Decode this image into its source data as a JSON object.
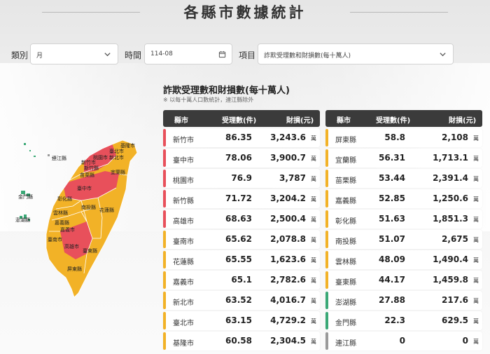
{
  "header": {
    "title": "各縣市數據統計"
  },
  "filters": {
    "category": {
      "label": "類別",
      "value": "月"
    },
    "time": {
      "label": "時間",
      "value": "114-08"
    },
    "item": {
      "label": "項目",
      "value": "詐欺受理數和財損數(每十萬人)"
    }
  },
  "section": {
    "title": "詐欺受理數和財損數(每十萬人)",
    "note": "※ 以每十萬人口數統計，連江縣除外"
  },
  "table_headers": {
    "city": "縣市",
    "cases": "受理數(件)",
    "loss": "財損(元)"
  },
  "unit": "萬",
  "colors": {
    "red": "#e8505b",
    "orange": "#f2b227",
    "green": "#3aa876",
    "gray": "#9a9a9a"
  },
  "left_rows": [
    {
      "city": "新竹市",
      "cases": "86.35",
      "loss": "3,243.6",
      "level": "red"
    },
    {
      "city": "臺中市",
      "cases": "78.06",
      "loss": "3,900.7",
      "level": "red"
    },
    {
      "city": "桃園市",
      "cases": "76.9",
      "loss": "3,787",
      "level": "red"
    },
    {
      "city": "新竹縣",
      "cases": "71.72",
      "loss": "3,204.2",
      "level": "red"
    },
    {
      "city": "高雄市",
      "cases": "68.63",
      "loss": "2,500.4",
      "level": "red"
    },
    {
      "city": "臺南市",
      "cases": "65.62",
      "loss": "2,078.8",
      "level": "orange"
    },
    {
      "city": "花蓮縣",
      "cases": "65.55",
      "loss": "1,623.6",
      "level": "orange"
    },
    {
      "city": "嘉義市",
      "cases": "65.1",
      "loss": "2,782.6",
      "level": "orange"
    },
    {
      "city": "新北市",
      "cases": "63.52",
      "loss": "4,016.7",
      "level": "orange"
    },
    {
      "city": "臺北市",
      "cases": "63.15",
      "loss": "4,729.2",
      "level": "orange"
    },
    {
      "city": "基隆市",
      "cases": "60.58",
      "loss": "2,304.5",
      "level": "orange"
    }
  ],
  "right_rows": [
    {
      "city": "屏東縣",
      "cases": "58.8",
      "loss": "2,108",
      "level": "orange"
    },
    {
      "city": "宜蘭縣",
      "cases": "56.31",
      "loss": "1,713.1",
      "level": "orange"
    },
    {
      "city": "苗栗縣",
      "cases": "53.44",
      "loss": "2,391.4",
      "level": "orange"
    },
    {
      "city": "嘉義縣",
      "cases": "52.85",
      "loss": "1,250.6",
      "level": "orange"
    },
    {
      "city": "彰化縣",
      "cases": "51.63",
      "loss": "1,851.3",
      "level": "orange"
    },
    {
      "city": "南投縣",
      "cases": "51.07",
      "loss": "2,675",
      "level": "orange"
    },
    {
      "city": "雲林縣",
      "cases": "48.09",
      "loss": "1,490.4",
      "level": "orange"
    },
    {
      "city": "臺東縣",
      "cases": "44.17",
      "loss": "1,459.8",
      "level": "orange"
    },
    {
      "city": "澎湖縣",
      "cases": "27.88",
      "loss": "217.6",
      "level": "green"
    },
    {
      "city": "金門縣",
      "cases": "22.3",
      "loss": "629.5",
      "level": "green"
    },
    {
      "city": "連江縣",
      "cases": "0",
      "loss": "0",
      "level": "gray"
    }
  ],
  "map_labels": {
    "keelung": "基隆市",
    "taipei": "臺北市",
    "newtaipei": "新北市",
    "taoyuan": "桃園市",
    "hsinchucity": "新竹市",
    "hsinchucounty": "新竹縣",
    "miaoli": "苗栗縣",
    "yilan": "宜蘭縣",
    "taichung": "臺中市",
    "changhua": "彰化縣",
    "nantou": "南投縣",
    "hualien": "花蓮縣",
    "yunlin": "雲林縣",
    "chiayicounty": "嘉義縣",
    "chiayicity": "嘉義市",
    "tainan": "臺南市",
    "kaohsiung": "高雄市",
    "taitung": "臺東縣",
    "pingtung": "屏東縣",
    "lienchiang": "連江縣",
    "kinmen": "金門縣",
    "penghu": "澎湖縣"
  }
}
